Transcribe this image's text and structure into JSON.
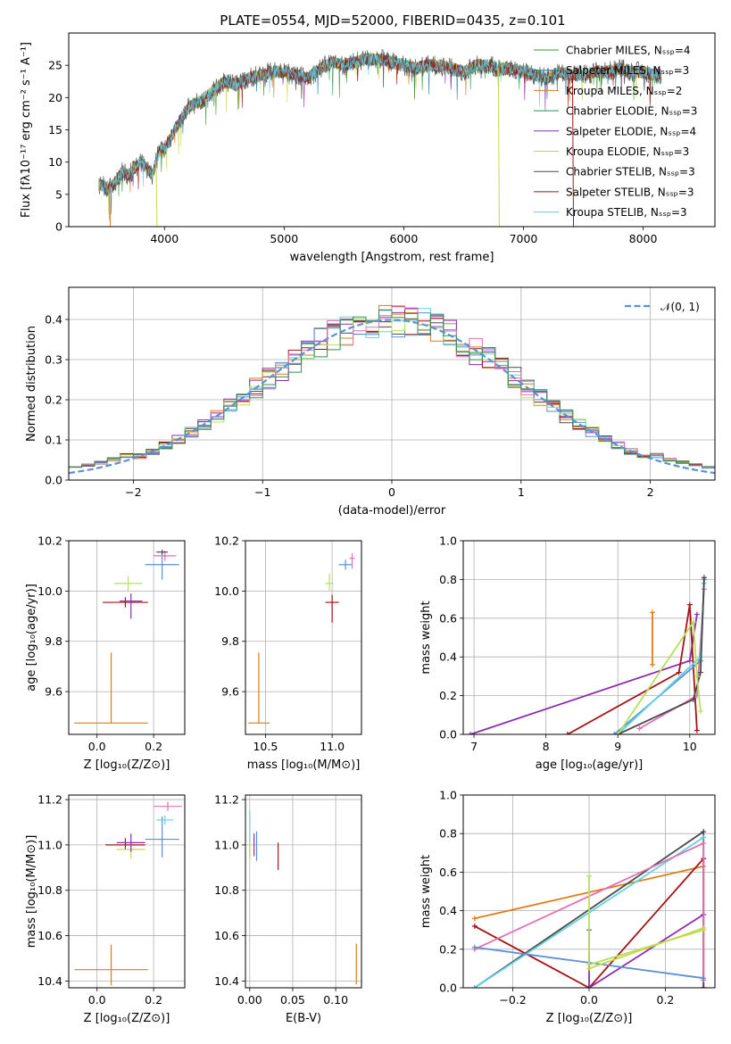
{
  "colors": {
    "chabrier_miles": "#2ca02c",
    "salpeter_miles": "#1f77b4",
    "kroupa_miles": "#e07b1a",
    "chabrier_elodie": "#2f8f4f",
    "salpeter_elodie": "#8c2db0",
    "kroupa_elodie": "#c8d84a",
    "chabrier_stelib": "#4a4a4a",
    "salpeter_stelib": "#a31515",
    "kroupa_stelib": "#5fd3e0",
    "gauss": "#5b8fd6",
    "blue_extra": "#5b8fd6",
    "pink_extra": "#e36fb5",
    "lime_extra": "#b5e05a"
  },
  "chart_data": [
    {
      "id": "spectrum",
      "type": "line",
      "title": "PLATE=0554, MJD=52000, FIBERID=0435, z=0.101",
      "xlabel": "wavelength [Angstrom, rest frame]",
      "ylabel": "Flux [fλ10⁻¹⁷ erg cm⁻² s⁻¹ A⁻¹]",
      "xlim": [
        3200,
        8600
      ],
      "ylim": [
        0,
        30
      ],
      "xticks": [
        "4000",
        "5000",
        "6000",
        "7000",
        "8000"
      ],
      "yticks": [
        "0",
        "5",
        "10",
        "15",
        "20",
        "25"
      ],
      "grid": false,
      "legend": "top-right",
      "series": [
        {
          "name": "Chabrier MILES, Nₛₛₚ=4",
          "color_key": "chabrier_miles"
        },
        {
          "name": "Salpeter MILES, Nₛₛₚ=3",
          "color_key": "salpeter_miles"
        },
        {
          "name": "Kroupa MILES, Nₛₛₚ=2",
          "color_key": "kroupa_miles"
        },
        {
          "name": "Chabrier ELODIE, Nₛₛₚ=3",
          "color_key": "chabrier_elodie"
        },
        {
          "name": "Salpeter ELODIE, Nₛₛₚ=4",
          "color_key": "salpeter_elodie"
        },
        {
          "name": "Kroupa ELODIE, Nₛₛₚ=3",
          "color_key": "kroupa_elodie"
        },
        {
          "name": "Chabrier STELIB, Nₛₛₚ=3",
          "color_key": "chabrier_stelib"
        },
        {
          "name": "Salpeter STELIB, Nₛₛₚ=3",
          "color_key": "salpeter_stelib"
        },
        {
          "name": "Kroupa STELIB, Nₛₛₚ=3",
          "color_key": "kroupa_stelib"
        }
      ],
      "envelope": {
        "x": [
          3450,
          3550,
          3650,
          3700,
          3800,
          3900,
          3950,
          4000,
          4100,
          4200,
          4300,
          4400,
          4500,
          4600,
          4700,
          4800,
          4900,
          5000,
          5100,
          5200,
          5300,
          5400,
          5500,
          5600,
          5700,
          5800,
          5900,
          6000,
          6100,
          6200,
          6300,
          6400,
          6500,
          6600,
          6700,
          6800,
          6900,
          7000,
          7100,
          7200,
          7300,
          7400,
          7500,
          7600,
          7700,
          7800,
          7900,
          8000,
          8100,
          8150
        ],
        "y": [
          6.5,
          6.0,
          8.5,
          8.0,
          10.0,
          8.0,
          11.5,
          12.0,
          15.5,
          18.5,
          19.5,
          21.0,
          22.5,
          22.0,
          23.0,
          23.5,
          24.0,
          24.0,
          23.5,
          23.0,
          24.5,
          25.5,
          25.0,
          25.5,
          26.0,
          26.0,
          25.5,
          25.0,
          24.5,
          25.0,
          25.0,
          24.5,
          24.0,
          25.0,
          25.0,
          24.5,
          24.5,
          24.0,
          23.5,
          23.0,
          24.0,
          23.5,
          23.5,
          24.0,
          24.0,
          24.5,
          24.0,
          24.0,
          23.5,
          23.0
        ]
      },
      "dips": [
        {
          "x": 3540,
          "to": 0,
          "color_key": "kroupa_miles"
        },
        {
          "x": 3930,
          "to": 0,
          "color_key": "kroupa_elodie"
        },
        {
          "x": 6790,
          "to": 0,
          "color_key": "kroupa_elodie"
        },
        {
          "x": 7410,
          "to": 0,
          "color_key": "salpeter_stelib"
        }
      ]
    },
    {
      "id": "residuals",
      "type": "line",
      "xlabel": "(data-model)/error",
      "ylabel": "Normed distribution",
      "xlim": [
        -2.5,
        2.5
      ],
      "ylim": [
        0,
        0.48
      ],
      "xticks": [
        "−2",
        "−1",
        "0",
        "1",
        "2"
      ],
      "yticks": [
        "0.0",
        "0.1",
        "0.2",
        "0.3",
        "0.4"
      ],
      "grid": true,
      "legend": "top-right",
      "legend_label": "𝒩(0, 1)",
      "bin_width": 0.1,
      "gauss": {
        "mu": 0,
        "sigma": 1
      }
    },
    {
      "id": "age_vs_Z",
      "type": "scatter",
      "xlabel": "Z [log₁₀(Z/Z⊙)]",
      "ylabel": "age  [log₁₀(age/yr)]",
      "xlim": [
        -0.1,
        0.31
      ],
      "ylim": [
        9.43,
        10.2
      ],
      "xticks": [
        "0.0",
        "0.2"
      ],
      "yticks": [
        "9.6",
        "9.8",
        "10.0",
        "10.2"
      ],
      "grid": true,
      "points": [
        {
          "x": 0.05,
          "y": 9.475,
          "xe": 0.13,
          "ye": [
            0,
            0.28
          ],
          "color_key": "kroupa_miles"
        },
        {
          "x": 0.1,
          "y": 9.955,
          "xe": 0.08,
          "ye": [
            0.02,
            0.02
          ],
          "color_key": "salpeter_stelib"
        },
        {
          "x": 0.11,
          "y": 10.03,
          "xe": 0.05,
          "ye": [
            0.03,
            0.03
          ],
          "color_key": "lime_extra"
        },
        {
          "x": 0.12,
          "y": 9.96,
          "xe": 0.04,
          "ye": [
            0.07,
            0.03
          ],
          "color_key": "salpeter_elodie"
        },
        {
          "x": 0.23,
          "y": 10.105,
          "xe": 0.06,
          "ye": [
            0.06,
            0.04
          ],
          "color_key": "blue_extra"
        },
        {
          "x": 0.24,
          "y": 10.14,
          "xe": 0.04,
          "ye": [
            0.02,
            0.02
          ],
          "color_key": "pink_extra"
        },
        {
          "x": 0.23,
          "y": 10.155,
          "xe": 0.02,
          "ye": [
            0.01,
            0.01
          ],
          "color_key": "chabrier_stelib"
        }
      ]
    },
    {
      "id": "age_vs_mass",
      "type": "scatter",
      "xlabel": "mass [log₁₀(M/M⊙)]",
      "ylabel": "",
      "xlim": [
        10.35,
        11.22
      ],
      "ylim": [
        9.43,
        10.2
      ],
      "xticks": [
        "10.5",
        "11.0"
      ],
      "yticks": [
        "9.6",
        "9.8",
        "10.0",
        "10.2"
      ],
      "grid": true,
      "points": [
        {
          "x": 10.45,
          "y": 9.475,
          "xe": 0.08,
          "ye": [
            0,
            0.28
          ],
          "color_key": "kroupa_miles"
        },
        {
          "x": 11.0,
          "y": 9.955,
          "xe": 0.05,
          "ye": [
            0.08,
            0.03
          ],
          "color_key": "salpeter_stelib"
        },
        {
          "x": 10.98,
          "y": 10.03,
          "xe": 0.03,
          "ye": [
            0.03,
            0.04
          ],
          "color_key": "lime_extra"
        },
        {
          "x": 11.1,
          "y": 10.105,
          "xe": 0.05,
          "ye": [
            0.02,
            0.02
          ],
          "color_key": "blue_extra"
        },
        {
          "x": 11.15,
          "y": 10.13,
          "xe": 0.02,
          "ye": [
            0.04,
            0.02
          ],
          "color_key": "pink_extra"
        }
      ]
    },
    {
      "id": "weight_vs_age",
      "type": "line",
      "xlabel": "age  [log₁₀(age/yr)]",
      "ylabel": "mass weight",
      "xlim": [
        6.85,
        10.35
      ],
      "ylim": [
        0,
        1.0
      ],
      "xticks": [
        "7",
        "8",
        "9",
        "10"
      ],
      "yticks": [
        "0.0",
        "0.2",
        "0.4",
        "0.6",
        "0.8",
        "1.0"
      ],
      "grid": true,
      "series": [
        {
          "color_key": "salpeter_elodie",
          "x": [
            6.95,
            10.0,
            10.1
          ],
          "y": [
            0.0,
            0.38,
            0.62
          ]
        },
        {
          "color_key": "salpeter_stelib",
          "x": [
            8.3,
            9.85,
            10.0,
            10.1
          ],
          "y": [
            0.0,
            0.32,
            0.67,
            0.02
          ]
        },
        {
          "color_key": "kroupa_miles",
          "x": [
            9.48,
            9.48
          ],
          "y": [
            0.36,
            0.63
          ]
        },
        {
          "color_key": "pink_extra",
          "x": [
            9.3,
            10.1,
            10.2
          ],
          "y": [
            0.03,
            0.2,
            0.75
          ]
        },
        {
          "color_key": "blue_extra",
          "x": [
            8.95,
            10.15,
            10.2
          ],
          "y": [
            0.0,
            0.38,
            0.8
          ]
        },
        {
          "color_key": "kroupa_stelib",
          "x": [
            9.0,
            10.15,
            10.2
          ],
          "y": [
            0.0,
            0.4,
            0.78
          ]
        },
        {
          "color_key": "chabrier_stelib",
          "x": [
            9.0,
            10.05,
            10.15,
            10.2
          ],
          "y": [
            0.0,
            0.18,
            0.32,
            0.81
          ]
        },
        {
          "color_key": "lime_extra",
          "x": [
            9.0,
            10.05,
            10.1,
            10.15
          ],
          "y": [
            0.0,
            0.58,
            0.3,
            0.12
          ]
        }
      ]
    },
    {
      "id": "mass_vs_Z",
      "type": "scatter",
      "xlabel": "Z [log₁₀(Z/Z⊙)]",
      "ylabel": "mass [log₁₀(M/M⊙)]",
      "xlim": [
        -0.1,
        0.31
      ],
      "ylim": [
        10.37,
        11.22
      ],
      "xticks": [
        "0.0",
        "0.2"
      ],
      "yticks": [
        "10.4",
        "10.6",
        "10.8",
        "11.0",
        "11.2"
      ],
      "grid": true,
      "points": [
        {
          "x": 0.05,
          "y": 10.45,
          "xe": 0.13,
          "ye": [
            0.07,
            0.11
          ],
          "color_key": "kroupa_miles"
        },
        {
          "x": 0.1,
          "y": 11.0,
          "xe": 0.07,
          "ye": [
            0.02,
            0.03
          ],
          "color_key": "salpeter_stelib"
        },
        {
          "x": 0.12,
          "y": 10.98,
          "xe": 0.05,
          "ye": [
            0.04,
            0.02
          ],
          "color_key": "kroupa_elodie"
        },
        {
          "x": 0.12,
          "y": 11.01,
          "xe": 0.05,
          "ye": [
            0.04,
            0.04
          ],
          "color_key": "salpeter_elodie"
        },
        {
          "x": 0.23,
          "y": 11.025,
          "xe": 0.06,
          "ye": [
            0.08,
            0.1
          ],
          "color_key": "blue_extra"
        },
        {
          "x": 0.24,
          "y": 11.11,
          "xe": 0.03,
          "ye": [
            0.02,
            0.02
          ],
          "color_key": "kroupa_stelib"
        },
        {
          "x": 0.25,
          "y": 11.17,
          "xe": 0.05,
          "ye": [
            0.02,
            0.02
          ],
          "color_key": "pink_extra"
        }
      ]
    },
    {
      "id": "mass_vs_EBV",
      "type": "scatter",
      "xlabel": "E(B-V)",
      "ylabel": "",
      "xlim": [
        -0.005,
        0.13
      ],
      "ylim": [
        10.37,
        11.22
      ],
      "xticks": [
        "0.00",
        "0.05",
        "0.10"
      ],
      "yticks": [
        "10.4",
        "10.6",
        "10.8",
        "11.0",
        "11.2"
      ],
      "grid": true,
      "points": [
        {
          "x": 0.0,
          "y": 11.0,
          "xe": 0,
          "ye": [
            0.05,
            0.15
          ],
          "color_key": "kroupa_stelib"
        },
        {
          "x": 0.0,
          "y": 10.98,
          "xe": 0,
          "ye": [
            0.04,
            0.04
          ],
          "color_key": "kroupa_elodie"
        },
        {
          "x": 0.005,
          "y": 11.0,
          "xe": 0,
          "ye": [
            0.05,
            0.05
          ],
          "color_key": "salpeter_elodie"
        },
        {
          "x": 0.008,
          "y": 11.0,
          "xe": 0,
          "ye": [
            0.07,
            0.06
          ],
          "color_key": "blue_extra"
        },
        {
          "x": 0.033,
          "y": 10.95,
          "xe": 0,
          "ye": [
            0.06,
            0.06
          ],
          "color_key": "salpeter_stelib"
        },
        {
          "x": 0.124,
          "y": 10.475,
          "xe": 0,
          "ye": [
            0.09,
            0.09
          ],
          "color_key": "kroupa_miles"
        }
      ]
    },
    {
      "id": "weight_vs_Z",
      "type": "line",
      "xlabel": "Z [log₁₀(Z/Z⊙)]",
      "ylabel": "mass weight",
      "xlim": [
        -0.33,
        0.33
      ],
      "ylim": [
        0,
        1.0
      ],
      "xticks": [
        "−0.2",
        "0.0",
        "0.2"
      ],
      "yticks": [
        "0.0",
        "0.2",
        "0.4",
        "0.6",
        "0.8",
        "1.0"
      ],
      "grid": true,
      "series": [
        {
          "color_key": "kroupa_miles",
          "x": [
            -0.3,
            0.3
          ],
          "y": [
            0.36,
            0.63
          ]
        },
        {
          "color_key": "salpeter_stelib",
          "x": [
            -0.3,
            0.0,
            0.3,
            0.3
          ],
          "y": [
            0.32,
            0.0,
            0.67,
            0.0
          ]
        },
        {
          "color_key": "salpeter_elodie",
          "x": [
            0.0,
            0.0,
            0.3
          ],
          "y": [
            0.3,
            0.0,
            0.38
          ]
        },
        {
          "color_key": "chabrier_stelib",
          "x": [
            -0.3,
            0.3,
            0.3
          ],
          "y": [
            0.0,
            0.81,
            0.0
          ]
        },
        {
          "color_key": "kroupa_stelib",
          "x": [
            -0.3,
            0.3
          ],
          "y": [
            0.0,
            0.78
          ]
        },
        {
          "color_key": "pink_extra",
          "x": [
            -0.3,
            0.3,
            0.3
          ],
          "y": [
            0.2,
            0.75,
            0.04
          ]
        },
        {
          "color_key": "blue_extra",
          "x": [
            -0.3,
            0.3
          ],
          "y": [
            0.21,
            0.05
          ]
        },
        {
          "color_key": "lime_extra",
          "x": [
            0.0,
            0.0,
            0.3
          ],
          "y": [
            0.58,
            0.12,
            0.3
          ]
        },
        {
          "color_key": "kroupa_elodie",
          "x": [
            0.0,
            0.3
          ],
          "y": [
            0.1,
            0.31
          ]
        }
      ]
    }
  ]
}
